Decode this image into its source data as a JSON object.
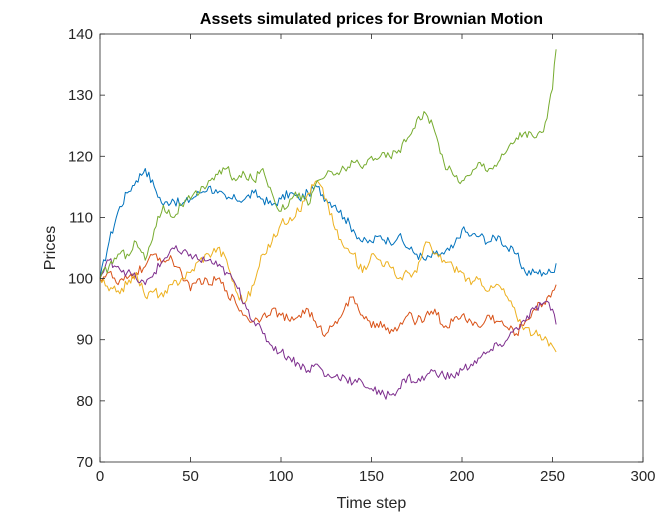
{
  "chart_data": {
    "type": "line",
    "title": "Assets simulated prices for Brownian Motion",
    "xlabel": "Time step",
    "ylabel": "Prices",
    "xlim": [
      0,
      300
    ],
    "ylim": [
      70,
      140
    ],
    "xticks": [
      "0",
      "50",
      "100",
      "150",
      "200",
      "250",
      "300"
    ],
    "yticks": [
      "70",
      "80",
      "90",
      "100",
      "110",
      "120",
      "130",
      "140"
    ],
    "grid": false,
    "legend": "none",
    "series": [
      {
        "color": "#0072BD",
        "x": [
          0,
          5,
          10,
          15,
          20,
          25,
          30,
          35,
          40,
          45,
          50,
          55,
          60,
          65,
          70,
          75,
          80,
          85,
          90,
          95,
          100,
          105,
          110,
          115,
          120,
          125,
          130,
          135,
          140,
          145,
          150,
          155,
          160,
          165,
          170,
          175,
          180,
          185,
          190,
          195,
          200,
          205,
          210,
          215,
          220,
          225,
          230,
          235,
          240,
          245,
          250,
          252
        ],
        "y": [
          100,
          106,
          111,
          114,
          116,
          118,
          115,
          112,
          113,
          112,
          113,
          114,
          115,
          114,
          113,
          113,
          113,
          114,
          113,
          112,
          113,
          114,
          113,
          114,
          115,
          113,
          112,
          110,
          108,
          106,
          106,
          107,
          106,
          107,
          105,
          104,
          103,
          104,
          104,
          105,
          108,
          107,
          107,
          106,
          107,
          105,
          104,
          101,
          101,
          101,
          101,
          102.5
        ]
      },
      {
        "color": "#D95319",
        "x": [
          0,
          5,
          10,
          15,
          20,
          25,
          30,
          35,
          40,
          45,
          50,
          55,
          60,
          65,
          70,
          75,
          80,
          85,
          90,
          95,
          100,
          105,
          110,
          115,
          120,
          125,
          130,
          135,
          140,
          145,
          150,
          155,
          160,
          165,
          170,
          175,
          180,
          185,
          190,
          195,
          200,
          205,
          210,
          215,
          220,
          225,
          230,
          235,
          240,
          245,
          250,
          252
        ],
        "y": [
          100,
          101,
          99,
          100,
          101,
          102,
          104,
          103,
          103,
          101,
          98,
          100,
          99,
          100,
          98,
          96,
          94,
          93,
          94,
          95,
          94,
          93,
          94,
          95,
          92,
          91,
          93,
          95,
          97,
          94,
          92,
          93,
          91,
          92,
          94,
          93,
          94,
          95,
          92,
          93,
          94,
          93,
          92,
          94,
          93,
          92,
          91,
          93,
          95,
          96,
          98,
          99
        ]
      },
      {
        "color": "#EDB120",
        "x": [
          0,
          5,
          10,
          15,
          20,
          25,
          30,
          35,
          40,
          45,
          50,
          55,
          60,
          65,
          70,
          75,
          80,
          85,
          90,
          95,
          100,
          105,
          110,
          115,
          120,
          125,
          130,
          135,
          140,
          145,
          150,
          155,
          160,
          165,
          170,
          175,
          180,
          185,
          190,
          195,
          200,
          205,
          210,
          215,
          220,
          225,
          230,
          235,
          240,
          245,
          250,
          252
        ],
        "y": [
          100,
          98,
          98,
          99,
          101,
          97,
          98,
          97,
          99,
          100,
          101,
          103,
          104,
          105,
          103,
          98,
          96,
          99,
          104,
          106,
          109,
          110,
          111,
          114,
          116,
          113,
          108,
          105,
          104,
          101,
          104,
          103,
          102,
          100,
          101,
          101,
          106,
          104,
          103,
          102,
          101,
          99,
          100,
          98,
          99,
          97,
          94,
          92,
          91,
          90,
          89,
          88
        ]
      },
      {
        "color": "#7E2F8E",
        "x": [
          0,
          5,
          10,
          15,
          20,
          25,
          30,
          35,
          40,
          45,
          50,
          55,
          60,
          65,
          70,
          75,
          80,
          85,
          90,
          95,
          100,
          105,
          110,
          115,
          120,
          125,
          130,
          135,
          140,
          145,
          150,
          155,
          160,
          165,
          170,
          175,
          180,
          185,
          190,
          195,
          200,
          205,
          210,
          215,
          220,
          225,
          230,
          235,
          240,
          245,
          250,
          252
        ],
        "y": [
          100,
          103,
          102,
          101,
          100,
          99,
          101,
          103,
          105,
          104,
          104,
          103,
          103,
          102,
          101,
          99,
          96,
          93,
          91,
          89,
          88,
          87,
          86,
          85,
          86,
          84,
          84,
          84,
          83,
          83,
          82,
          81,
          81,
          82,
          84,
          83,
          84,
          85,
          84,
          84,
          85,
          86,
          87,
          88,
          89,
          90,
          92,
          93,
          95,
          96,
          95,
          92.5
        ]
      },
      {
        "color": "#77AC30",
        "x": [
          0,
          5,
          10,
          15,
          20,
          25,
          30,
          35,
          40,
          45,
          50,
          55,
          60,
          65,
          70,
          75,
          80,
          85,
          90,
          95,
          100,
          105,
          110,
          115,
          120,
          125,
          130,
          135,
          140,
          145,
          150,
          155,
          160,
          165,
          170,
          175,
          180,
          185,
          190,
          195,
          200,
          205,
          210,
          215,
          220,
          225,
          230,
          235,
          240,
          245,
          250,
          252
        ],
        "y": [
          100,
          102,
          104,
          104,
          106,
          103,
          108,
          112,
          110,
          112,
          113,
          114,
          116,
          117,
          118,
          116,
          117,
          116,
          118,
          114,
          111,
          113,
          114,
          112,
          116,
          117,
          117,
          118,
          119,
          118,
          120,
          120,
          120,
          121,
          123,
          126,
          127,
          124,
          119,
          117,
          116,
          117,
          119,
          118,
          119,
          121,
          123,
          124,
          123,
          124,
          131,
          137.5
        ]
      }
    ]
  }
}
